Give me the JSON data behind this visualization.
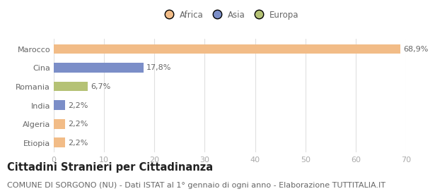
{
  "categories": [
    "Marocco",
    "Cina",
    "Romania",
    "India",
    "Algeria",
    "Etiopia"
  ],
  "values": [
    68.9,
    17.8,
    6.7,
    2.2,
    2.2,
    2.2
  ],
  "labels": [
    "68,9%",
    "17,8%",
    "6,7%",
    "2,2%",
    "2,2%",
    "2,2%"
  ],
  "colors": [
    "#f2bc87",
    "#7b8ec8",
    "#b5c275",
    "#7b8ec8",
    "#f2bc87",
    "#f2bc87"
  ],
  "legend_items": [
    {
      "label": "Africa",
      "color": "#f2bc87"
    },
    {
      "label": "Asia",
      "color": "#7b8ec8"
    },
    {
      "label": "Europa",
      "color": "#b5c275"
    }
  ],
  "xlim": [
    0,
    70
  ],
  "xticks": [
    0,
    10,
    20,
    30,
    40,
    50,
    60,
    70
  ],
  "title": "Cittadini Stranieri per Cittadinanza",
  "subtitle": "COMUNE DI SORGONO (NU) - Dati ISTAT al 1° gennaio di ogni anno - Elaborazione TUTTITALIA.IT",
  "background_color": "#ffffff",
  "bar_height": 0.52,
  "title_fontsize": 10.5,
  "subtitle_fontsize": 8,
  "label_fontsize": 8,
  "tick_fontsize": 8,
  "legend_fontsize": 8.5
}
